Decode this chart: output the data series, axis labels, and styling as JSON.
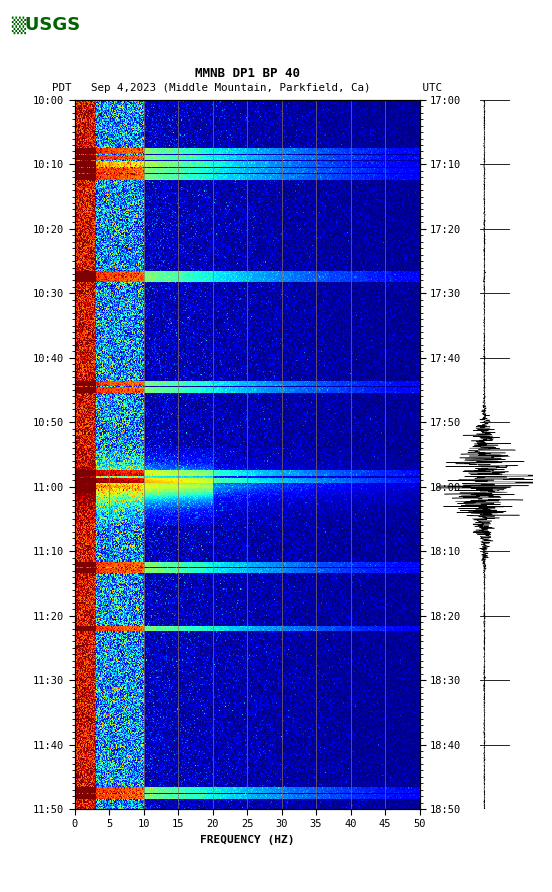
{
  "title_line1": "MMNB DP1 BP 40",
  "title_line2": "PDT   Sep 4,2023 (Middle Mountain, Parkfield, Ca)        UTC",
  "xlabel": "FREQUENCY (HZ)",
  "freq_min": 0,
  "freq_max": 50,
  "left_tick_labels": [
    "10:00",
    "10:10",
    "10:20",
    "10:30",
    "10:40",
    "10:50",
    "11:00",
    "11:10",
    "11:20",
    "11:30",
    "11:40",
    "11:50"
  ],
  "right_tick_labels": [
    "17:00",
    "17:10",
    "17:20",
    "17:30",
    "17:40",
    "17:50",
    "18:00",
    "18:10",
    "18:20",
    "18:30",
    "18:40",
    "18:50"
  ],
  "xticks": [
    0,
    5,
    10,
    15,
    20,
    25,
    30,
    35,
    40,
    45,
    50
  ],
  "vertical_grid_freqs": [
    5,
    10,
    15,
    20,
    25,
    30,
    35,
    40,
    45
  ],
  "grid_color": "#8B7355",
  "fig_width": 5.52,
  "fig_height": 8.92,
  "usgs_color": "#006400",
  "seis_event_time": 0.535,
  "seis_event_amplitude": 8.0,
  "seis_base_noise": 0.08
}
